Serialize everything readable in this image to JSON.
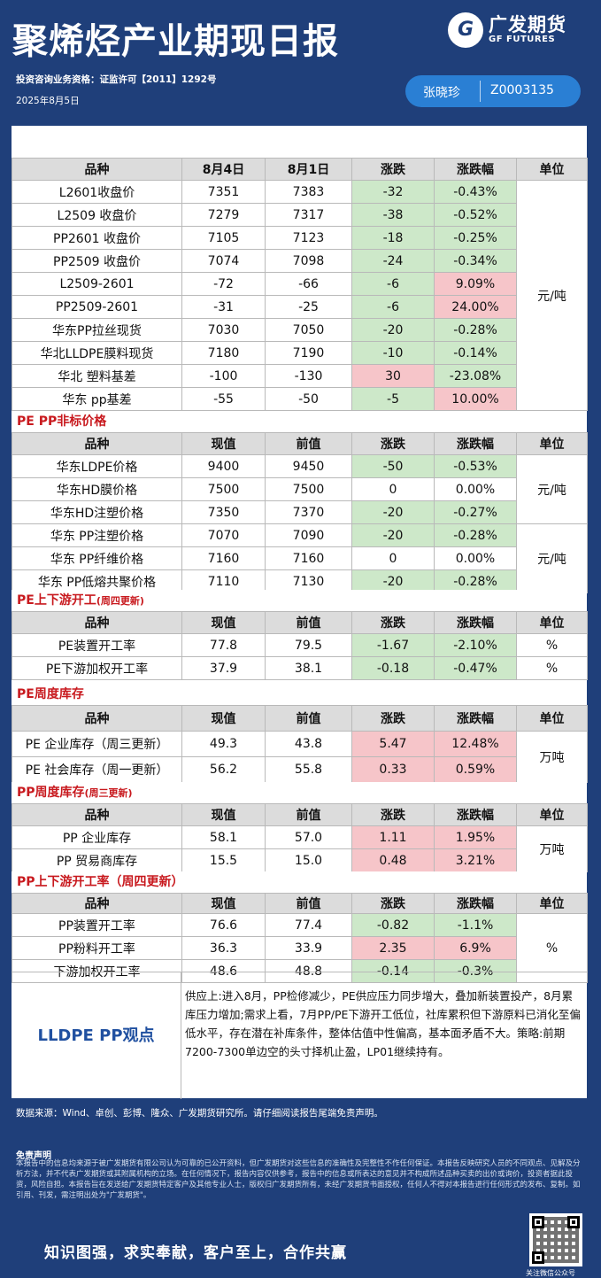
{
  "header": {
    "title": "聚烯烃产业期现日报",
    "logo_cn": "广发期货",
    "logo_en": "GF FUTURES",
    "license": "投资咨询业务资格：证监许可【2011】1292号",
    "date": "2025年8月5日",
    "analyst_name": "张晓珍",
    "analyst_code": "Z0003135"
  },
  "main_table": {
    "headers": [
      "品种",
      "8月4日",
      "8月1日",
      "涨跌",
      "涨跌幅",
      "单位"
    ],
    "unit": "元/吨",
    "rows": [
      {
        "name": "L2601收盘价",
        "v1": "7351",
        "v2": "7383",
        "chg": "-32",
        "pct": "-0.43%"
      },
      {
        "name": "L2509 收盘价",
        "v1": "7279",
        "v2": "7317",
        "chg": "-38",
        "pct": "-0.52%"
      },
      {
        "name": "PP2601 收盘价",
        "v1": "7105",
        "v2": "7123",
        "chg": "-18",
        "pct": "-0.25%"
      },
      {
        "name": "PP2509 收盘价",
        "v1": "7074",
        "v2": "7098",
        "chg": "-24",
        "pct": "-0.34%"
      },
      {
        "name": "L2509-2601",
        "v1": "-72",
        "v2": "-66",
        "chg": "-6",
        "pct": "9.09%"
      },
      {
        "name": "PP2509-2601",
        "v1": "-31",
        "v2": "-25",
        "chg": "-6",
        "pct": "24.00%"
      },
      {
        "name": "华东PP拉丝现货",
        "v1": "7030",
        "v2": "7050",
        "chg": "-20",
        "pct": "-0.28%"
      },
      {
        "name": "华北LLDPE膜料现货",
        "v1": "7180",
        "v2": "7190",
        "chg": "-10",
        "pct": "-0.14%"
      },
      {
        "name": "华北 塑料基差",
        "v1": "-100",
        "v2": "-130",
        "chg": "30",
        "pct": "-23.08%"
      },
      {
        "name": "华东 pp基差",
        "v1": "-55",
        "v2": "-50",
        "chg": "-5",
        "pct": "10.00%"
      }
    ]
  },
  "nonstd": {
    "section": "PE PP非标价格",
    "headers": [
      "品种",
      "现值",
      "前值",
      "涨跌",
      "涨跌幅",
      "单位"
    ],
    "unit_a": "元/吨",
    "unit_b": "元/吨",
    "rows": [
      {
        "name": "华东LDPE价格",
        "v1": "9400",
        "v2": "9450",
        "chg": "-50",
        "pct": "-0.53%"
      },
      {
        "name": "华东HD膜价格",
        "v1": "7500",
        "v2": "7500",
        "chg": "0",
        "pct": "0.00%"
      },
      {
        "name": "华东HD注塑价格",
        "v1": "7350",
        "v2": "7370",
        "chg": "-20",
        "pct": "-0.27%"
      },
      {
        "name": "华东 PP注塑价格",
        "v1": "7070",
        "v2": "7090",
        "chg": "-20",
        "pct": "-0.28%"
      },
      {
        "name": "华东 PP纤维价格",
        "v1": "7160",
        "v2": "7160",
        "chg": "0",
        "pct": "0.00%"
      },
      {
        "name": "华东 PP低熔共聚价格",
        "v1": "7110",
        "v2": "7130",
        "chg": "-20",
        "pct": "-0.28%"
      }
    ]
  },
  "pe_rate": {
    "section": "PE上下游开工",
    "section_note": "(周四更新)",
    "headers": [
      "品种",
      "现值",
      "前值",
      "涨跌",
      "涨跌幅",
      "单位"
    ],
    "rows": [
      {
        "name": "PE装置开工率",
        "v1": "77.8",
        "v2": "79.5",
        "chg": "-1.67",
        "pct": "-2.10%",
        "unit": "%"
      },
      {
        "name": "PE下游加权开工率",
        "v1": "37.9",
        "v2": "38.1",
        "chg": "-0.18",
        "pct": "-0.47%",
        "unit": "%"
      }
    ]
  },
  "pe_inv": {
    "section": "PE周度库存",
    "headers": [
      "品种",
      "现值",
      "前值",
      "涨跌",
      "涨跌幅",
      "单位"
    ],
    "unit": "万吨",
    "rows": [
      {
        "name": "PE 企业库存（周三更新）",
        "v1": "49.3",
        "v2": "43.8",
        "chg": "5.47",
        "pct": "12.48%"
      },
      {
        "name": "PE 社会库存（周一更新）",
        "v1": "56.2",
        "v2": "55.8",
        "chg": "0.33",
        "pct": "0.59%"
      }
    ]
  },
  "pp_inv": {
    "section": "PP周度库存",
    "section_note": "(周三更新)",
    "headers": [
      "品种",
      "现值",
      "前值",
      "涨跌",
      "涨跌幅",
      "单位"
    ],
    "unit": "万吨",
    "rows": [
      {
        "name": "PP 企业库存",
        "v1": "58.1",
        "v2": "57.0",
        "chg": "1.11",
        "pct": "1.95%"
      },
      {
        "name": "PP 贸易商库存",
        "v1": "15.5",
        "v2": "15.0",
        "chg": "0.48",
        "pct": "3.21%"
      }
    ]
  },
  "pp_rate": {
    "section": "PP上下游开工率（周四更新）",
    "headers": [
      "品种",
      "现值",
      "前值",
      "涨跌",
      "涨跌幅",
      "单位"
    ],
    "unit": "%",
    "rows": [
      {
        "name": "PP装置开工率",
        "v1": "76.6",
        "v2": "77.4",
        "chg": "-0.82",
        "pct": "-1.1%"
      },
      {
        "name": "PP粉料开工率",
        "v1": "36.3",
        "v2": "33.9",
        "chg": "2.35",
        "pct": "6.9%"
      },
      {
        "name": "下游加权开工率",
        "v1": "48.6",
        "v2": "48.8",
        "chg": "-0.14",
        "pct": "-0.3%"
      }
    ]
  },
  "view": {
    "label": "LLDPE  PP观点",
    "text": "供应上:进入8月，PP检修减少，PE供应压力同步增大，叠加新装置投产，8月累库压力增加;需求上看，7月PP/PE下游开工低位，社库累积但下游原料已消化至偏低水平，存在潜在补库条件，整体估值中性偏高，基本面矛盾不大。策略:前期7200-7300单边空的头寸择机止盈，LP01继续持有。"
  },
  "footer": {
    "source": "数据来源：Wind、卓创、彭博、隆众、广发期货研究所。请仔细阅读报告尾端免责声明。",
    "disclaimer_title": "免责声明",
    "disclaimer_text": "本报告中的信息均来源于被广发期货有限公司认为可靠的已公开资料，但广发期货对这些信息的准确性及完整性不作任何保证。本报告反映研究人员的不同观点、见解及分析方法，并不代表广发期货或其附属机构的立场。在任何情况下，报告内容仅供参考，报告中的信息或所表达的意见并不构成所述品种买卖的出价或询价，投资者据此投资，风险自担。本报告旨在发送给广发期货特定客户及其他专业人士，版权归广发期货所有，未经广发期货书面授权，任何人不得对本报告进行任何形式的发布、复制。如引用、刊发，需注明出处为\"广发期货\"。",
    "slogan": "知识图强，求实奉献，客户至上，合作共赢",
    "qr_caption": "关注微信公众号"
  }
}
